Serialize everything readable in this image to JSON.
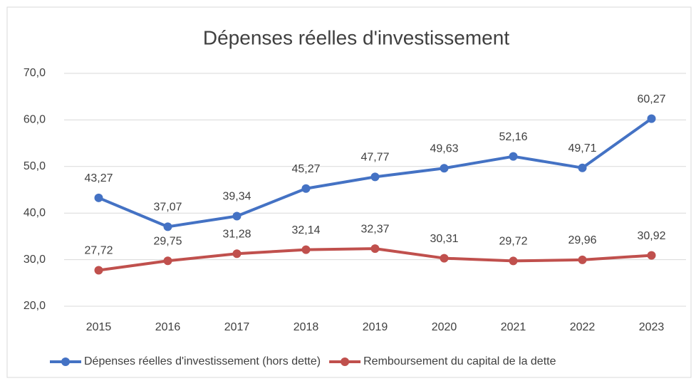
{
  "chart_data": {
    "type": "line",
    "title": "Dépenses réelles d'investissement",
    "categories": [
      "2015",
      "2016",
      "2017",
      "2018",
      "2019",
      "2020",
      "2021",
      "2022",
      "2023"
    ],
    "series": [
      {
        "name": "Dépenses réelles d'investissement (hors dette)",
        "color": "#4472c4",
        "values": [
          43.27,
          37.07,
          39.34,
          45.27,
          47.77,
          49.63,
          52.16,
          49.71,
          60.27
        ],
        "value_labels": [
          "43,27",
          "37,07",
          "39,34",
          "45,27",
          "47,77",
          "49,63",
          "52,16",
          "49,71",
          "60,27"
        ]
      },
      {
        "name": "Remboursement du capital de la dette",
        "color": "#c0504d",
        "values": [
          27.72,
          29.75,
          31.28,
          32.14,
          32.37,
          30.31,
          29.72,
          29.96,
          30.92
        ],
        "value_labels": [
          "27,72",
          "29,75",
          "31,28",
          "32,14",
          "32,37",
          "30,31",
          "29,72",
          "29,96",
          "30,92"
        ]
      }
    ],
    "ylim": [
      20,
      70
    ],
    "yticks": [
      {
        "value": 20,
        "label": "20,0"
      },
      {
        "value": 30,
        "label": "30,0"
      },
      {
        "value": 40,
        "label": "40,0"
      },
      {
        "value": 50,
        "label": "50,0"
      },
      {
        "value": 60,
        "label": "60,0"
      },
      {
        "value": 70,
        "label": "70,0"
      }
    ],
    "grid": true,
    "legend": "bottom"
  }
}
